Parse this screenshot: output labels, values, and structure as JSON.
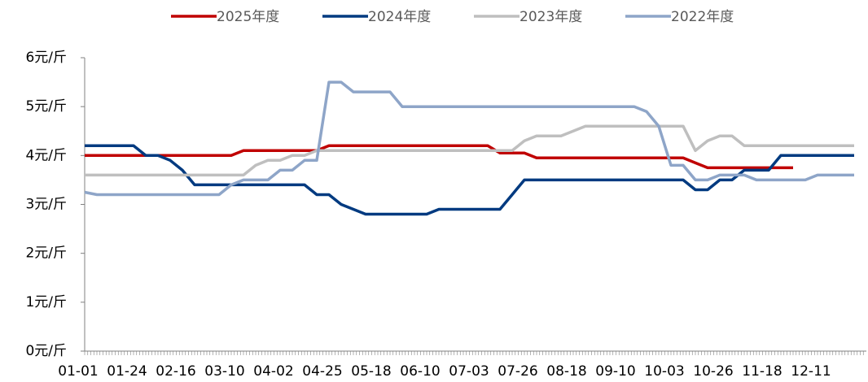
{
  "chart_data": {
    "type": "line",
    "categories": [
      "01-01",
      null,
      null,
      null,
      "01-24",
      null,
      null,
      null,
      "02-16",
      null,
      null,
      null,
      "03-10",
      null,
      null,
      null,
      "04-02",
      null,
      null,
      null,
      "04-25",
      null,
      null,
      null,
      "05-18",
      null,
      null,
      null,
      "06-10",
      null,
      null,
      null,
      "07-03",
      null,
      null,
      null,
      "07-26",
      null,
      null,
      null,
      "08-18",
      null,
      null,
      null,
      "09-10",
      null,
      null,
      null,
      "10-03",
      null,
      null,
      null,
      "10-26",
      null,
      null,
      null,
      "11-18",
      null,
      null,
      null,
      "12-11",
      null,
      null,
      null
    ],
    "series": [
      {
        "name": "2025年度",
        "color": "#c00000",
        "values": [
          4.0,
          4.0,
          4.0,
          4.0,
          4.0,
          4.0,
          4.0,
          4.0,
          4.0,
          4.0,
          4.0,
          4.0,
          4.0,
          4.1,
          4.1,
          4.1,
          4.1,
          4.1,
          4.1,
          4.1,
          4.2,
          4.2,
          4.2,
          4.2,
          4.2,
          4.2,
          4.2,
          4.2,
          4.2,
          4.2,
          4.2,
          4.2,
          4.2,
          4.2,
          4.05,
          4.05,
          4.05,
          3.95,
          3.95,
          3.95,
          3.95,
          3.95,
          3.95,
          3.95,
          3.95,
          3.95,
          3.95,
          3.95,
          3.95,
          3.95,
          3.85,
          3.75,
          3.75,
          3.75,
          3.75,
          3.75,
          3.75,
          3.75,
          3.75,
          null,
          null,
          null,
          null,
          null
        ]
      },
      {
        "name": "2024年度",
        "color": "#003a80",
        "values": [
          4.2,
          4.2,
          4.2,
          4.2,
          4.2,
          4.0,
          4.0,
          3.9,
          3.7,
          3.4,
          3.4,
          3.4,
          3.4,
          3.4,
          3.4,
          3.4,
          3.4,
          3.4,
          3.4,
          3.2,
          3.2,
          3.0,
          2.9,
          2.8,
          2.8,
          2.8,
          2.8,
          2.8,
          2.8,
          2.9,
          2.9,
          2.9,
          2.9,
          2.9,
          2.9,
          3.2,
          3.5,
          3.5,
          3.5,
          3.5,
          3.5,
          3.5,
          3.5,
          3.5,
          3.5,
          3.5,
          3.5,
          3.5,
          3.5,
          3.5,
          3.3,
          3.3,
          3.5,
          3.5,
          3.7,
          3.7,
          3.7,
          4.0,
          4.0,
          4.0,
          4.0,
          4.0,
          4.0,
          4.0
        ]
      },
      {
        "name": "2023年度",
        "color": "#bfbfbf",
        "values": [
          3.6,
          3.6,
          3.6,
          3.6,
          3.6,
          3.6,
          3.6,
          3.6,
          3.6,
          3.6,
          3.6,
          3.6,
          3.6,
          3.6,
          3.8,
          3.9,
          3.9,
          4.0,
          4.0,
          4.1,
          4.1,
          4.1,
          4.1,
          4.1,
          4.1,
          4.1,
          4.1,
          4.1,
          4.1,
          4.1,
          4.1,
          4.1,
          4.1,
          4.1,
          4.1,
          4.1,
          4.3,
          4.4,
          4.4,
          4.4,
          4.5,
          4.6,
          4.6,
          4.6,
          4.6,
          4.6,
          4.6,
          4.6,
          4.6,
          4.6,
          4.1,
          4.3,
          4.4,
          4.4,
          4.2,
          4.2,
          4.2,
          4.2,
          4.2,
          4.2,
          4.2,
          4.2,
          4.2,
          4.2
        ]
      },
      {
        "name": "2022年度",
        "color": "#8ea5c8",
        "values": [
          3.25,
          3.2,
          3.2,
          3.2,
          3.2,
          3.2,
          3.2,
          3.2,
          3.2,
          3.2,
          3.2,
          3.2,
          3.4,
          3.5,
          3.5,
          3.5,
          3.7,
          3.7,
          3.9,
          3.9,
          5.5,
          5.5,
          5.3,
          5.3,
          5.3,
          5.3,
          5.0,
          5.0,
          5.0,
          5.0,
          5.0,
          5.0,
          5.0,
          5.0,
          5.0,
          5.0,
          5.0,
          5.0,
          5.0,
          5.0,
          5.0,
          5.0,
          5.0,
          5.0,
          5.0,
          5.0,
          4.9,
          4.6,
          3.8,
          3.8,
          3.5,
          3.5,
          3.6,
          3.6,
          3.6,
          3.5,
          3.5,
          3.5,
          3.5,
          3.5,
          3.6,
          3.6,
          3.6,
          3.6
        ]
      }
    ],
    "ylim": [
      0,
      6
    ],
    "yticks": [
      {
        "value": 0,
        "label": "0元/斤"
      },
      {
        "value": 1,
        "label": "1元/斤"
      },
      {
        "value": 2,
        "label": "2元/斤"
      },
      {
        "value": 3,
        "label": "3元/斤"
      },
      {
        "value": 4,
        "label": "4元/斤"
      },
      {
        "value": 5,
        "label": "5元/斤"
      },
      {
        "value": 6,
        "label": "6元/斤"
      }
    ],
    "legend": "top",
    "grid": false
  }
}
